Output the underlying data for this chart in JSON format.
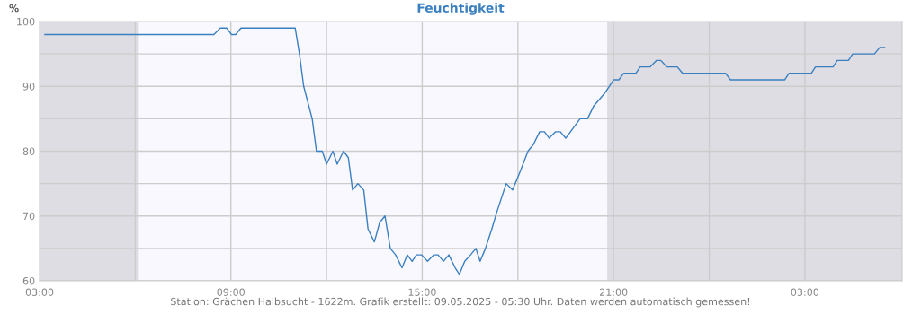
{
  "chart_data": {
    "type": "line",
    "title": "Feuchtigkeit",
    "ylabel": "%",
    "annotations": [
      "Station: Grächen Halbsucht - 1622m. Grafik erstellt: 09.05.2025 - 05:30 Uhr. Daten werden automatisch gemessen!"
    ],
    "series": [
      {
        "color": "#3a7fbf",
        "x": [
          "2025-05-08T03:10",
          "2025-05-08T08:28",
          "2025-05-08T08:40",
          "2025-05-08T08:52",
          "2025-05-08T09:01",
          "2025-05-08T09:09",
          "2025-05-08T09:19",
          "2025-05-08T11:01",
          "2025-05-08T11:09",
          "2025-05-08T11:17",
          "2025-05-08T11:33",
          "2025-05-08T11:41",
          "2025-05-08T11:52",
          "2025-05-08T12:00",
          "2025-05-08T12:12",
          "2025-05-08T12:20",
          "2025-05-08T12:32",
          "2025-05-08T12:41",
          "2025-05-08T12:49",
          "2025-05-08T12:59",
          "2025-05-08T13:10",
          "2025-05-08T13:18",
          "2025-05-08T13:30",
          "2025-05-08T13:40",
          "2025-05-08T13:50",
          "2025-05-08T14:00",
          "2025-05-08T14:10",
          "2025-05-08T14:22",
          "2025-05-08T14:32",
          "2025-05-08T14:41",
          "2025-05-08T14:49",
          "2025-05-08T14:59",
          "2025-05-08T15:10",
          "2025-05-08T15:22",
          "2025-05-08T15:30",
          "2025-05-08T15:40",
          "2025-05-08T15:50",
          "2025-05-08T16:02",
          "2025-05-08T16:10",
          "2025-05-08T16:20",
          "2025-05-08T16:31",
          "2025-05-08T16:41",
          "2025-05-08T16:49",
          "2025-05-08T16:59",
          "2025-05-08T17:11",
          "2025-05-08T17:20",
          "2025-05-08T17:38",
          "2025-05-08T17:50",
          "2025-05-08T18:05",
          "2025-05-08T18:19",
          "2025-05-08T18:29",
          "2025-05-08T18:41",
          "2025-05-08T18:50",
          "2025-05-08T18:59",
          "2025-05-08T19:11",
          "2025-05-08T19:20",
          "2025-05-08T19:30",
          "2025-05-08T19:57",
          "2025-05-08T20:11",
          "2025-05-08T20:23",
          "2025-05-08T20:44",
          "2025-05-08T21:00",
          "2025-05-08T21:10",
          "2025-05-08T21:19",
          "2025-05-08T21:42",
          "2025-05-08T21:50",
          "2025-05-08T22:09",
          "2025-05-08T22:21",
          "2025-05-08T22:29",
          "2025-05-08T22:40",
          "2025-05-08T23:00",
          "2025-05-08T23:10",
          "2025-05-09T00:31",
          "2025-05-09T00:40",
          "2025-05-09T02:22",
          "2025-05-09T02:30",
          "2025-05-09T03:12",
          "2025-05-09T03:20",
          "2025-05-09T03:53",
          "2025-05-09T04:01",
          "2025-05-09T04:22",
          "2025-05-09T04:30",
          "2025-05-09T05:11",
          "2025-05-09T05:21",
          "2025-05-09T05:30"
        ],
        "values": [
          98,
          98,
          99,
          99,
          98,
          98,
          99,
          99,
          95,
          90,
          85,
          80,
          80,
          78,
          80,
          78,
          80,
          79,
          74,
          75,
          74,
          68,
          66,
          69,
          70,
          65,
          64,
          62,
          64,
          63,
          64,
          64,
          63,
          64,
          64,
          63,
          64,
          62,
          61,
          63,
          64,
          65,
          63,
          65,
          68,
          70.5,
          75,
          74,
          77,
          80,
          81,
          83,
          83,
          82,
          83,
          83,
          82,
          85,
          85,
          87,
          89,
          91,
          91,
          92,
          92,
          93,
          93,
          94,
          94,
          93,
          93,
          92,
          92,
          91,
          91,
          92,
          92,
          93,
          93,
          94,
          94,
          95,
          95,
          96,
          96
        ]
      }
    ],
    "xlim": [
      "2025-05-08T03:00",
      "2025-05-09T06:03"
    ],
    "xticks": [
      {
        "value": "2025-05-08T03:00",
        "label": "03:00"
      },
      {
        "value": "2025-05-08T06:00",
        "label": null
      },
      {
        "value": "2025-05-08T09:00",
        "label": "09:00"
      },
      {
        "value": "2025-05-08T12:00",
        "label": null
      },
      {
        "value": "2025-05-08T15:00",
        "label": "15:00"
      },
      {
        "value": "2025-05-08T18:00",
        "label": null
      },
      {
        "value": "2025-05-08T21:00",
        "label": "21:00"
      },
      {
        "value": "2025-05-09T00:00",
        "label": null
      },
      {
        "value": "2025-05-09T03:00",
        "label": "03:00"
      }
    ],
    "ylim": [
      60,
      100
    ],
    "yticks": [
      60,
      {
        "value": 65,
        "label": null
      },
      70,
      {
        "value": 75,
        "label": null
      },
      80,
      {
        "value": 85,
        "label": null
      },
      90,
      {
        "value": 95,
        "label": null
      },
      100
    ],
    "grid": true,
    "legend": false,
    "marker": "none",
    "line_style": "solid",
    "bands": [
      {
        "axis": "x",
        "from": "2025-05-08T03:00",
        "to": "2025-05-08T06:05",
        "color": "#dedde3"
      },
      {
        "axis": "x",
        "from": "2025-05-08T20:48",
        "to": "2025-05-09T06:03",
        "color": "#dedde3"
      }
    ]
  }
}
